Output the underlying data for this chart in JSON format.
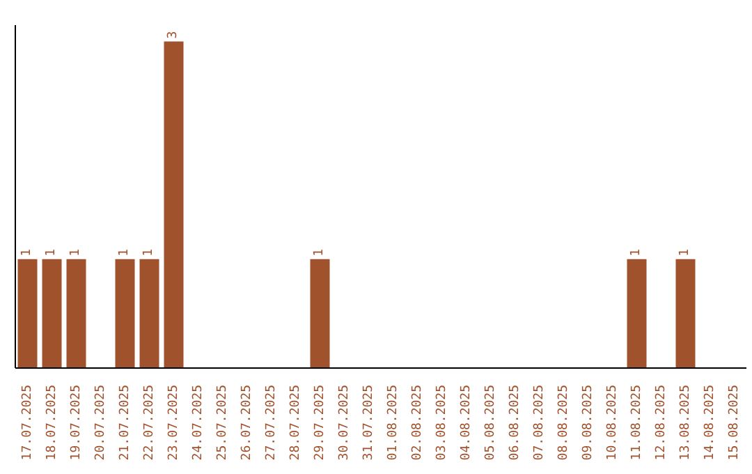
{
  "chart_data": {
    "type": "bar",
    "categories": [
      "17.07.2025",
      "18.07.2025",
      "19.07.2025",
      "20.07.2025",
      "21.07.2025",
      "22.07.2025",
      "23.07.2025",
      "24.07.2025",
      "25.07.2025",
      "26.07.2025",
      "27.07.2025",
      "28.07.2025",
      "29.07.2025",
      "30.07.2025",
      "31.07.2025",
      "01.08.2025",
      "02.08.2025",
      "03.08.2025",
      "04.08.2025",
      "05.08.2025",
      "06.08.2025",
      "07.08.2025",
      "08.08.2025",
      "09.08.2025",
      "10.08.2025",
      "11.08.2025",
      "12.08.2025",
      "13.08.2025",
      "14.08.2025",
      "15.08.2025"
    ],
    "values": [
      1,
      1,
      1,
      0,
      1,
      1,
      3,
      0,
      0,
      0,
      0,
      0,
      1,
      0,
      0,
      0,
      0,
      0,
      0,
      0,
      0,
      0,
      0,
      0,
      0,
      1,
      0,
      1,
      0,
      0
    ],
    "value_labels": [
      "1",
      "1",
      "1",
      null,
      "1",
      "1",
      "3",
      null,
      null,
      null,
      null,
      null,
      "1",
      null,
      null,
      null,
      null,
      null,
      null,
      null,
      null,
      null,
      null,
      null,
      null,
      "1",
      null,
      "1",
      null,
      null
    ],
    "color": "#a0522d",
    "tick_labels": "x"
  }
}
